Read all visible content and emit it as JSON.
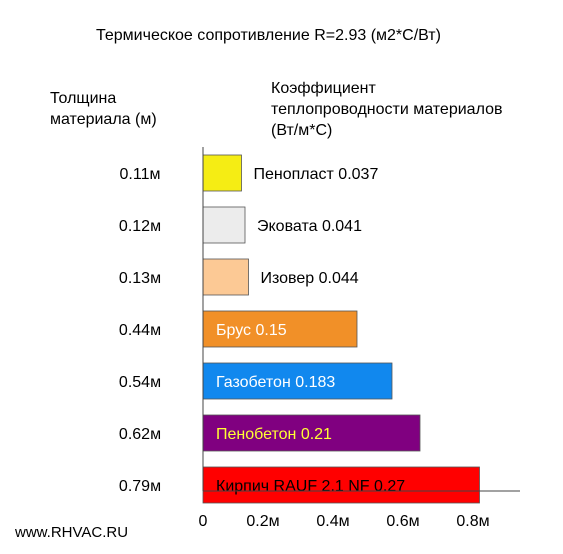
{
  "header": {
    "title": "Термическое сопротивление R=2.93 (м2*С/Вт)",
    "thickness_header": "Толщина\nматериала (м)",
    "conductivity_header": "Коэффициент\nтеплопроводности материалов\n(Вт/м*С)"
  },
  "footer": {
    "site": "www.RHVAC.RU"
  },
  "chart_data": {
    "type": "bar",
    "orientation": "horizontal",
    "title": "Термическое сопротивление R=2.93 (м2*С/Вт)",
    "xlabel": "",
    "ylabel": "Толщина материала (м)",
    "xlim": [
      0,
      0.8
    ],
    "x_ticks": [
      "0",
      "0.2м",
      "0.4м",
      "0.6м",
      "0.8м"
    ],
    "grid": false,
    "categories": [
      "Пенопласт",
      "Эковата",
      "Изовер",
      "Брус",
      "Газобетон",
      "Пенобетон",
      "Кирпич RAUF 2.1 NF"
    ],
    "thickness_labels": [
      "0.11м",
      "0.12м",
      "0.13м",
      "0.44м",
      "0.54м",
      "0.62м",
      "0.79м"
    ],
    "bar_labels": [
      "Пенопласт  0.037",
      "Эковата 0.041",
      "Изовер 0.044",
      "Брус  0.15",
      "Газобетон  0.183",
      "Пенобетон  0.21",
      "Кирпич RAUF 2.1 NF  0.27"
    ],
    "values": [
      0.11,
      0.12,
      0.13,
      0.44,
      0.54,
      0.62,
      0.79
    ],
    "conductivity": [
      0.037,
      0.041,
      0.044,
      0.15,
      0.183,
      0.21,
      0.27
    ],
    "colors": [
      "#f5ed14",
      "#ececec",
      "#fcc995",
      "#f19028",
      "#1188ee",
      "#800080",
      "#ff0000"
    ],
    "label_colors": [
      "#000000",
      "#000000",
      "#000000",
      "#ffffff",
      "#ffffff",
      "#ffff33",
      "#000000"
    ],
    "label_inside": [
      false,
      false,
      false,
      true,
      true,
      true,
      true
    ]
  }
}
